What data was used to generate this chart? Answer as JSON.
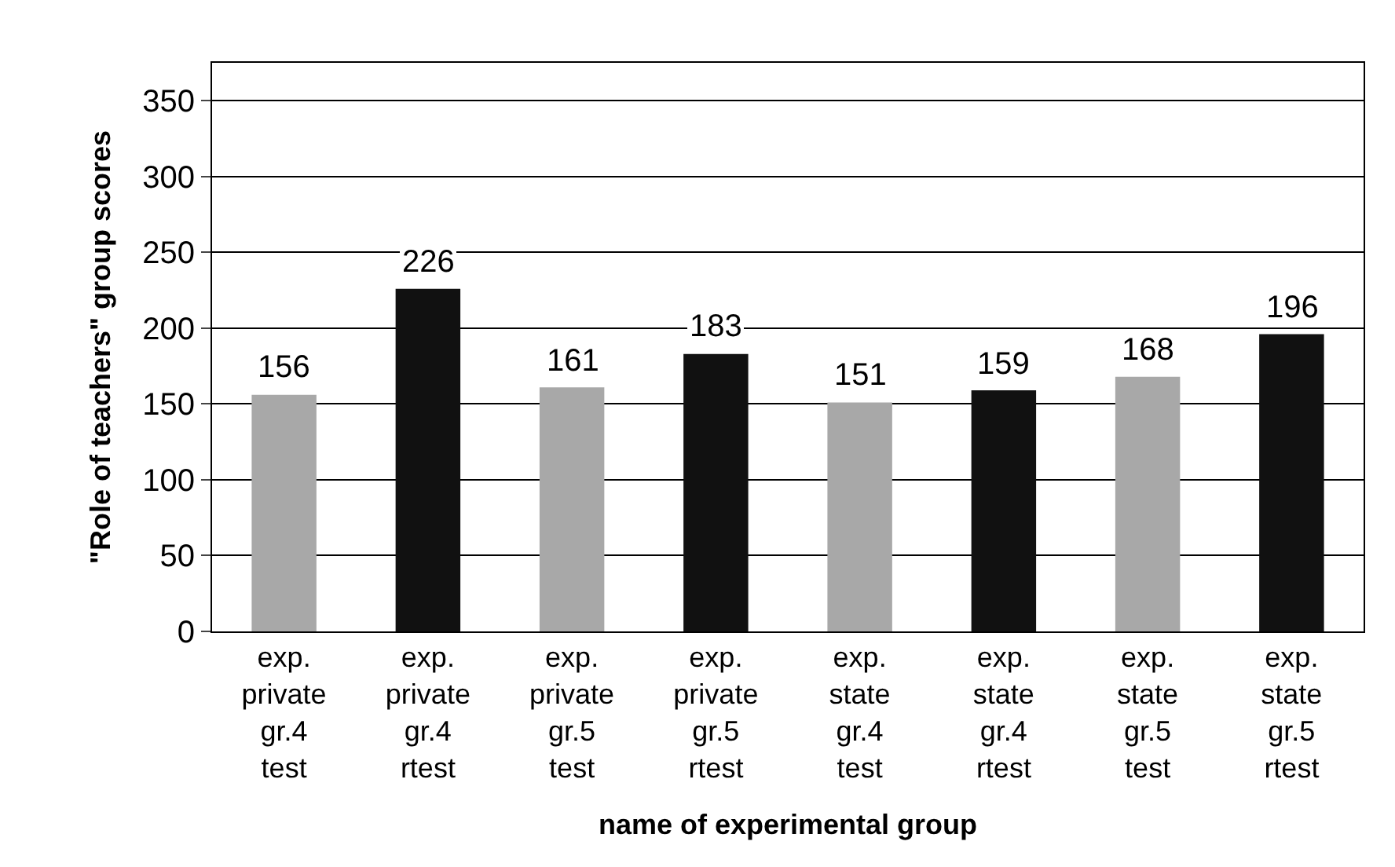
{
  "chart_data": {
    "type": "bar",
    "xlabel": "name of experimental group",
    "ylabel": "\"Role of teachers\" group scores",
    "categories": [
      "exp. private gr.4 test",
      "exp. private gr.4 rtest",
      "exp. private gr.5 test",
      "exp. private gr.5 rtest",
      "exp. state gr.4 test",
      "exp. state gr.4 rtest",
      "exp. state gr.5 test",
      "exp. state gr.5 rtest"
    ],
    "values": [
      156,
      226,
      161,
      183,
      151,
      159,
      168,
      196
    ],
    "colors": [
      "#a8a8a8",
      "#111111",
      "#a8a8a8",
      "#111111",
      "#a8a8a8",
      "#111111",
      "#a8a8a8",
      "#111111"
    ],
    "ylim": [
      0,
      375
    ],
    "yticks": [
      0,
      50,
      100,
      150,
      200,
      250,
      300,
      350
    ],
    "grid": "y",
    "data_labels": true
  }
}
